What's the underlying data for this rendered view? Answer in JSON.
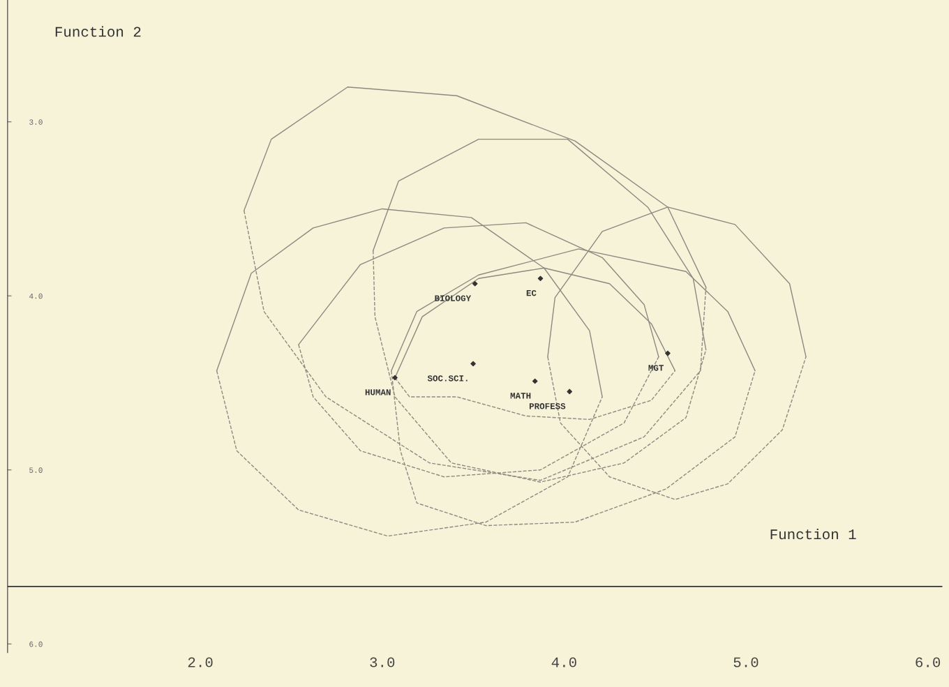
{
  "chart_data": {
    "type": "scatter",
    "xlabel": "Function 1",
    "ylabel": "Function 2",
    "xlim": [
      0.94,
      6.08
    ],
    "ylim": [
      6.05,
      2.3
    ],
    "xticks": [
      {
        "value": 2,
        "label": "2.0"
      },
      {
        "value": 3,
        "label": "3.0"
      },
      {
        "value": 4,
        "label": "4.0"
      },
      {
        "value": 5,
        "label": "5.0"
      },
      {
        "value": 6,
        "label": "6.0"
      }
    ],
    "yticks": [
      {
        "value": 3,
        "label": "3.0"
      },
      {
        "value": 4,
        "label": "4.0"
      },
      {
        "value": 5,
        "label": "5.0"
      },
      {
        "value": 6,
        "label": "6.0"
      }
    ],
    "ref_lines": [
      {
        "axis": "y",
        "value": 5.67,
        "color": "#333333"
      }
    ],
    "grid": false,
    "legend": false,
    "line_style": "solid",
    "series": [
      {
        "marker": "diamond",
        "color": "#333333",
        "x": [
          3.51,
          3.87,
          3.5,
          3.07,
          3.84,
          4.03,
          4.57
        ],
        "values": [
          3.93,
          3.9,
          4.39,
          4.47,
          4.49,
          4.55,
          4.33
        ]
      },
      {
        "type": "line",
        "color": "#8a8a80",
        "x": [
          2.24,
          2.39,
          2.81,
          3.41,
          4.06,
          4.57,
          4.78
        ],
        "values": [
          3.51,
          3.1,
          2.8,
          2.85,
          3.11,
          3.49,
          3.95
        ]
      },
      {
        "type": "line",
        "line_style": "dashed",
        "color": "#8a8a80",
        "x": [
          2.24,
          2.35,
          2.69,
          3.26,
          3.87,
          4.44,
          4.75,
          4.78
        ],
        "values": [
          3.51,
          4.09,
          4.58,
          4.96,
          5.06,
          4.81,
          4.43,
          3.95
        ]
      },
      {
        "type": "line",
        "color": "#8a8a80",
        "x": [
          2.95,
          3.09,
          3.53,
          4.02,
          4.46,
          4.71,
          4.78
        ],
        "values": [
          3.74,
          3.34,
          3.1,
          3.1,
          3.49,
          3.9,
          4.31
        ]
      },
      {
        "type": "line",
        "line_style": "dashed",
        "color": "#8a8a80",
        "x": [
          2.95,
          2.96,
          3.07,
          3.38,
          3.87,
          4.33,
          4.67,
          4.78
        ],
        "values": [
          3.74,
          4.12,
          4.58,
          4.96,
          5.07,
          4.96,
          4.7,
          4.31
        ]
      },
      {
        "type": "line",
        "color": "#8a8a80",
        "x": [
          2.09,
          2.28,
          2.62,
          3.0,
          3.49,
          3.89,
          4.14,
          4.21
        ],
        "values": [
          4.43,
          3.87,
          3.61,
          3.5,
          3.55,
          3.84,
          4.2,
          4.58
        ]
      },
      {
        "type": "line",
        "line_style": "dashed",
        "color": "#8a8a80",
        "x": [
          2.09,
          2.2,
          2.54,
          3.03,
          3.57,
          4.02,
          4.21
        ],
        "values": [
          4.43,
          4.89,
          5.23,
          5.38,
          5.3,
          5.04,
          4.58
        ]
      },
      {
        "type": "line",
        "color": "#8a8a80",
        "x": [
          2.54,
          2.88,
          3.34,
          3.79,
          4.21,
          4.44,
          4.52
        ],
        "values": [
          4.28,
          3.82,
          3.61,
          3.58,
          3.78,
          4.05,
          4.35
        ]
      },
      {
        "type": "line",
        "line_style": "dashed",
        "color": "#8a8a80",
        "x": [
          2.54,
          2.62,
          2.88,
          3.34,
          3.87,
          4.33,
          4.52
        ],
        "values": [
          4.28,
          4.58,
          4.89,
          5.04,
          5.0,
          4.73,
          4.35
        ]
      },
      {
        "type": "line",
        "color": "#8a8a80",
        "x": [
          3.91,
          3.95,
          4.21,
          4.57,
          4.94,
          5.24,
          5.33
        ],
        "values": [
          4.35,
          4.01,
          3.63,
          3.49,
          3.59,
          3.93,
          4.35
        ]
      },
      {
        "type": "line",
        "line_style": "dashed",
        "color": "#8a8a80",
        "x": [
          3.91,
          3.98,
          4.25,
          4.61,
          4.9,
          5.2,
          5.33
        ],
        "values": [
          4.35,
          4.73,
          5.04,
          5.17,
          5.08,
          4.77,
          4.35
        ]
      },
      {
        "type": "line",
        "color": "#8a8a80",
        "x": [
          3.05,
          3.19,
          3.53,
          4.08,
          4.67,
          4.9,
          5.05
        ],
        "values": [
          4.43,
          4.09,
          3.88,
          3.73,
          3.86,
          4.09,
          4.43
        ]
      },
      {
        "type": "line",
        "line_style": "dashed",
        "color": "#8a8a80",
        "x": [
          3.05,
          3.1,
          3.19,
          3.57,
          4.06,
          4.56,
          4.94,
          5.05
        ],
        "values": [
          4.43,
          4.89,
          5.19,
          5.32,
          5.3,
          5.11,
          4.81,
          4.43
        ]
      },
      {
        "type": "line",
        "color": "#8a8a80",
        "x": [
          3.07,
          3.22,
          3.53,
          3.89,
          4.25,
          4.48,
          4.61
        ],
        "values": [
          4.47,
          4.12,
          3.9,
          3.84,
          3.93,
          4.16,
          4.43
        ]
      },
      {
        "type": "line",
        "line_style": "dashed",
        "color": "#8a8a80",
        "x": [
          3.07,
          3.15,
          3.41,
          3.79,
          4.14,
          4.48,
          4.61
        ],
        "values": [
          4.47,
          4.58,
          4.58,
          4.69,
          4.71,
          4.6,
          4.43
        ]
      }
    ],
    "annotations": [
      {
        "text": "BIOLOGY",
        "x": 3.51,
        "y": 3.93
      },
      {
        "text": "EC",
        "x": 3.87,
        "y": 3.9
      },
      {
        "text": "SOC.SCI.",
        "x": 3.5,
        "y": 4.39
      },
      {
        "text": "HUMAN",
        "x": 3.07,
        "y": 4.47
      },
      {
        "text": "MATH",
        "x": 3.84,
        "y": 4.49
      },
      {
        "text": "PROFESS",
        "x": 4.03,
        "y": 4.55
      },
      {
        "text": "MGT",
        "x": 4.57,
        "y": 4.33
      }
    ]
  }
}
